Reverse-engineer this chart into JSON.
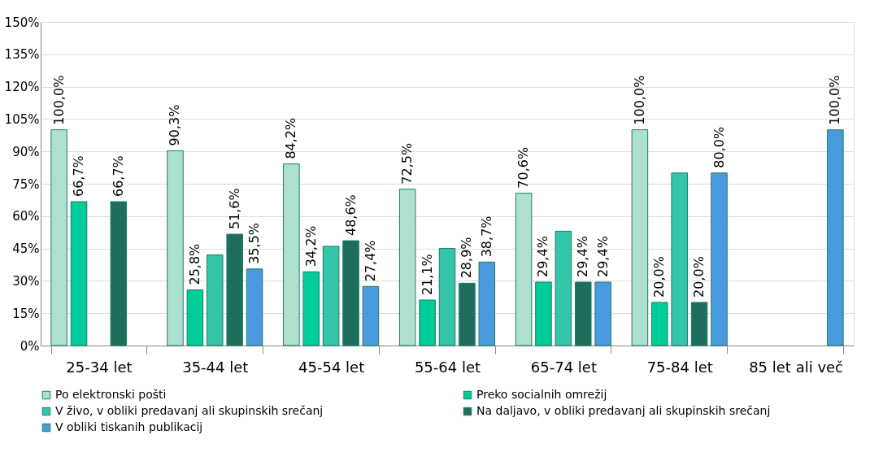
{
  "chart_data": {
    "type": "bar",
    "categories": [
      "25-34 let",
      "35-44 let",
      "45-54 let",
      "55-64 let",
      "65-74 let",
      "75-84 let",
      "85 let ali več"
    ],
    "series": [
      {
        "name": "Po elektronski pošti",
        "color": "#aee0d0",
        "values": [
          100.0,
          90.3,
          84.2,
          72.5,
          70.6,
          100.0,
          null
        ],
        "value_labels": [
          "100,0%",
          "90,3%",
          "84,2%",
          "72,5%",
          "70,6%",
          "100,0%",
          null
        ]
      },
      {
        "name": "Preko socialnih omrežij",
        "color": "#00cc99",
        "values": [
          66.7,
          25.8,
          34.2,
          21.1,
          29.4,
          20.0,
          null
        ],
        "value_labels": [
          "66,7%",
          "25,8%",
          "34,2%",
          "21,1%",
          "29,4%",
          "20,0%",
          null
        ]
      },
      {
        "name": "V živo, v obliki predavanj ali skupinskih srečanj",
        "color": "#33c6a8",
        "values": [
          null,
          42,
          46,
          45,
          53,
          80,
          null
        ],
        "value_labels": [
          null,
          null,
          null,
          null,
          null,
          null,
          null
        ]
      },
      {
        "name": "Na daljavo, v obliki predavanj ali skupinskih srečanj",
        "color": "#1e6e5e",
        "values": [
          66.7,
          51.6,
          48.6,
          28.9,
          29.4,
          20.0,
          null
        ],
        "value_labels": [
          "66,7%",
          "51,6%",
          "48,6%",
          "28,9%",
          "29,4%",
          "20,0%",
          null
        ]
      },
      {
        "name": "V  obliki tiskanih publikacij",
        "color": "#4a9ade",
        "values": [
          null,
          35.5,
          27.4,
          38.7,
          29.4,
          80.0,
          100.0
        ],
        "value_labels": [
          null,
          "35,5%",
          "27,4%",
          "38,7%",
          "29,4%",
          "80,0%",
          "100,0%"
        ]
      }
    ],
    "ylim": [
      0,
      150
    ],
    "yticks": [
      {
        "value": 0,
        "label": "0%"
      },
      {
        "value": 15,
        "label": "15%"
      },
      {
        "value": 30,
        "label": "30%"
      },
      {
        "value": 45,
        "label": "45%"
      },
      {
        "value": 60,
        "label": "60%"
      },
      {
        "value": 75,
        "label": "75%"
      },
      {
        "value": 90,
        "label": "90%"
      },
      {
        "value": 105,
        "label": "105%"
      },
      {
        "value": 120,
        "label": "120%"
      },
      {
        "value": 135,
        "label": "135%"
      },
      {
        "value": 150,
        "label": "150%"
      }
    ],
    "grid": "y",
    "legend": "bottom"
  }
}
